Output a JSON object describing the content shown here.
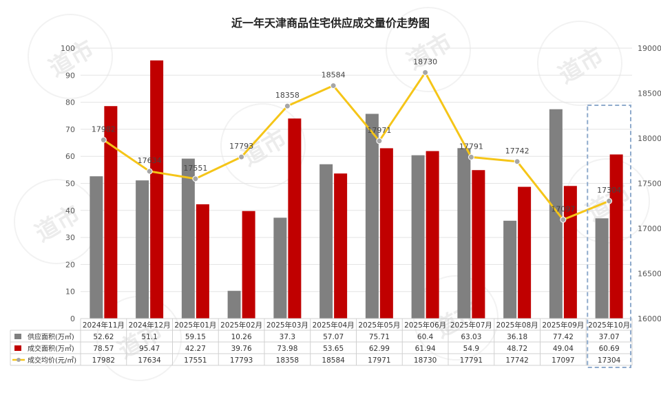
{
  "chart_data": {
    "type": "bar+line",
    "title": "近一年天津商品住宅供应成交量价走势图",
    "categories": [
      "2024年11月",
      "2024年12月",
      "2025年01月",
      "2025年02月",
      "2025年03月",
      "2025年04月",
      "2025年05月",
      "2025年06月",
      "2025年07月",
      "2025年08月",
      "2025年09月",
      "2025年10月"
    ],
    "series": [
      {
        "name": "供应面积(万㎡)",
        "type": "bar",
        "axis": "left",
        "color": "#808080",
        "values": [
          52.62,
          51.1,
          59.15,
          10.26,
          37.3,
          57.07,
          75.71,
          60.4,
          63.03,
          36.18,
          77.42,
          37.07
        ]
      },
      {
        "name": "成交面积(万㎡)",
        "type": "bar",
        "axis": "left",
        "color": "#c00000",
        "values": [
          78.57,
          95.47,
          42.27,
          39.76,
          73.98,
          53.65,
          62.99,
          61.94,
          54.9,
          48.72,
          49.04,
          60.69
        ]
      },
      {
        "name": "成交均价(元/㎡)",
        "type": "line",
        "axis": "right",
        "color": "#f5c518",
        "values": [
          17982,
          17634,
          17551,
          17793,
          18358,
          18584,
          17971,
          18730,
          17791,
          17742,
          17097,
          17304
        ]
      }
    ],
    "y_left": {
      "min": 0,
      "max": 100,
      "ticks": [
        0,
        10,
        20,
        30,
        40,
        50,
        60,
        70,
        80,
        90,
        100
      ]
    },
    "y_right": {
      "min": 16000,
      "max": 19000,
      "ticks": [
        16000,
        16500,
        17000,
        17500,
        18000,
        18500,
        19000
      ]
    },
    "grid": true,
    "legend": "table-bottom",
    "highlight_category": "2025年10月"
  },
  "watermark": "道市"
}
